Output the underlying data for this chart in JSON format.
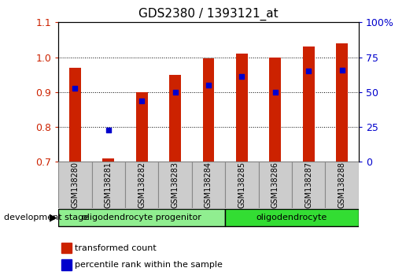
{
  "title": "GDS2380 / 1393121_at",
  "samples": [
    "GSM138280",
    "GSM138281",
    "GSM138282",
    "GSM138283",
    "GSM138284",
    "GSM138285",
    "GSM138286",
    "GSM138287",
    "GSM138288"
  ],
  "transformed_count": [
    0.97,
    0.71,
    0.9,
    0.95,
    0.997,
    1.01,
    0.998,
    1.03,
    1.04
  ],
  "percentile_rank": [
    0.91,
    0.79,
    0.875,
    0.9,
    0.92,
    0.945,
    0.9,
    0.96,
    0.963
  ],
  "bar_bottom": 0.7,
  "bar_color": "#CC2200",
  "dot_color": "#0000CC",
  "ylim_left": [
    0.7,
    1.1
  ],
  "ylim_right": [
    0,
    100
  ],
  "yticks_left": [
    0.7,
    0.8,
    0.9,
    1.0,
    1.1
  ],
  "yticks_right": [
    0,
    25,
    50,
    75,
    100
  ],
  "ytick_right_labels": [
    "0",
    "25",
    "50",
    "75",
    "100%"
  ],
  "groups": [
    {
      "label": "oligodendrocyte progenitor",
      "indices": [
        0,
        1,
        2,
        3,
        4
      ],
      "color": "#90EE90"
    },
    {
      "label": "oligodendrocyte",
      "indices": [
        5,
        6,
        7,
        8
      ],
      "color": "#33DD33"
    }
  ],
  "group_label": "development stage",
  "legend_items": [
    {
      "color": "#CC2200",
      "label": "transformed count"
    },
    {
      "color": "#0000CC",
      "label": "percentile rank within the sample"
    }
  ],
  "background_color": "#FFFFFF",
  "plot_bg_color": "#FFFFFF",
  "tick_label_color_left": "#CC2200",
  "tick_label_color_right": "#0000CC",
  "bar_width": 0.35,
  "dot_size": 22,
  "label_box_color": "#CCCCCC",
  "label_box_edge": "#888888"
}
